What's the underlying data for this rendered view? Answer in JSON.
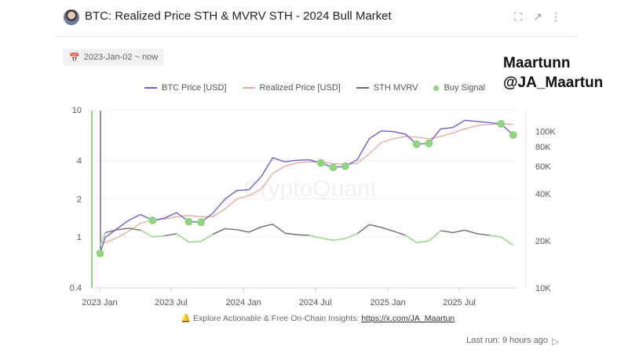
{
  "header": {
    "title": "BTC: Realized Price STH & MVRV STH - 2024 Bull Market",
    "icons": [
      "fullscreen-icon",
      "open-external-icon",
      "more-vertical-icon"
    ]
  },
  "date_range": {
    "label": "2023-Jan-02 ~ now",
    "icon": "calendar-icon"
  },
  "watermark": {
    "line1": "Maartunn",
    "line2": "@JA_Maartun",
    "center": "CryptoQuant"
  },
  "footer": {
    "icon": "bell-icon",
    "text": "Explore Actionable & Free On-Chain Insights:",
    "link": "https://x.com/JA_Maartun",
    "last_run": "Last run: 9 hours ago",
    "run_icon": "play-icon"
  },
  "colors": {
    "btc_price": "#6f5fd0",
    "realized_price": "#e4a99b",
    "sth_mvrv": "#6e6e6e",
    "buy_signal": "#8fd47e"
  },
  "chart_data": {
    "type": "line",
    "title": "BTC: Realized Price STH & MVRV STH - 2024 Bull Market",
    "legend": [
      "BTC Price [USD]",
      "Realized Price [USD]",
      "STH MVRV",
      "Buy Signal"
    ],
    "legend_placement": "top",
    "x_ticks": [
      "2023 Jan",
      "2023 Jul",
      "2024 Jan",
      "2024 Jul",
      "2025 Jan",
      "2025 Jul"
    ],
    "x_tick_dates": [
      "2023-01-01",
      "2023-07-01",
      "2024-01-01",
      "2024-07-01",
      "2025-01-01",
      "2025-07-01"
    ],
    "left_axis": {
      "scale": "log",
      "ticks": [
        10,
        4,
        2,
        1,
        0.4
      ],
      "tick_labels": [
        "10",
        "4",
        "2",
        "1",
        "0.4"
      ],
      "range": [
        0.4,
        10
      ],
      "series": "STH MVRV"
    },
    "right_axis": {
      "scale": "log",
      "ticks": [
        100000,
        80000,
        60000,
        40000,
        20000,
        10000
      ],
      "tick_labels": [
        "100K",
        "80K",
        "60K",
        "40K",
        "20K",
        "10K"
      ],
      "range": [
        10000,
        136000
      ],
      "series": "BTC Price / Realized Price"
    },
    "grid": true,
    "x": [
      "2023-01-02",
      "2023-01-15",
      "2023-02-15",
      "2023-03-15",
      "2023-04-15",
      "2023-05-15",
      "2023-06-15",
      "2023-07-15",
      "2023-08-15",
      "2023-09-15",
      "2023-10-15",
      "2023-11-15",
      "2023-12-15",
      "2024-01-15",
      "2024-02-15",
      "2024-03-15",
      "2024-04-15",
      "2024-05-15",
      "2024-06-15",
      "2024-07-15",
      "2024-08-15",
      "2024-09-15",
      "2024-10-15",
      "2024-11-15",
      "2024-12-15",
      "2025-01-15",
      "2025-02-15",
      "2025-03-15",
      "2025-04-15",
      "2025-05-15",
      "2025-06-15",
      "2025-07-15",
      "2025-08-15",
      "2025-09-15",
      "2025-10-15",
      "2025-11-15"
    ],
    "series": [
      {
        "name": "BTC Price [USD]",
        "values": [
          16600,
          21000,
          24000,
          27000,
          29500,
          27000,
          28000,
          30300,
          26500,
          26300,
          30000,
          37000,
          42000,
          42500,
          51500,
          68000,
          64000,
          65500,
          66000,
          63000,
          59000,
          60000,
          66000,
          90000,
          101000,
          100000,
          96000,
          83000,
          84000,
          104000,
          106000,
          118000,
          116000,
          114000,
          112000,
          95000
        ]
      },
      {
        "name": "Realized Price [USD]",
        "values": [
          19500,
          19500,
          21000,
          23000,
          26000,
          27000,
          27500,
          28500,
          29000,
          28500,
          28500,
          32000,
          37000,
          39000,
          43000,
          54000,
          60000,
          63000,
          64000,
          64000,
          62500,
          62000,
          62500,
          72000,
          85000,
          90000,
          93000,
          92000,
          90000,
          93000,
          98000,
          104000,
          109000,
          111000,
          112000,
          111000
        ]
      },
      {
        "name": "STH MVRV",
        "values": [
          0.85,
          1.08,
          1.14,
          1.17,
          1.13,
          1.0,
          1.02,
          1.06,
          0.91,
          0.92,
          1.05,
          1.16,
          1.14,
          1.09,
          1.2,
          1.26,
          1.07,
          1.04,
          1.03,
          0.98,
          0.94,
          0.97,
          1.06,
          1.25,
          1.19,
          1.11,
          1.03,
          0.9,
          0.93,
          1.12,
          1.08,
          1.13,
          1.06,
          1.03,
          1.0,
          0.86
        ]
      },
      {
        "name": "Buy Signal",
        "values": [
          true,
          false,
          false,
          false,
          false,
          true,
          false,
          false,
          true,
          true,
          false,
          false,
          false,
          false,
          false,
          false,
          false,
          false,
          false,
          true,
          true,
          true,
          false,
          false,
          false,
          false,
          false,
          true,
          true,
          false,
          false,
          false,
          false,
          false,
          true,
          true
        ]
      }
    ]
  }
}
